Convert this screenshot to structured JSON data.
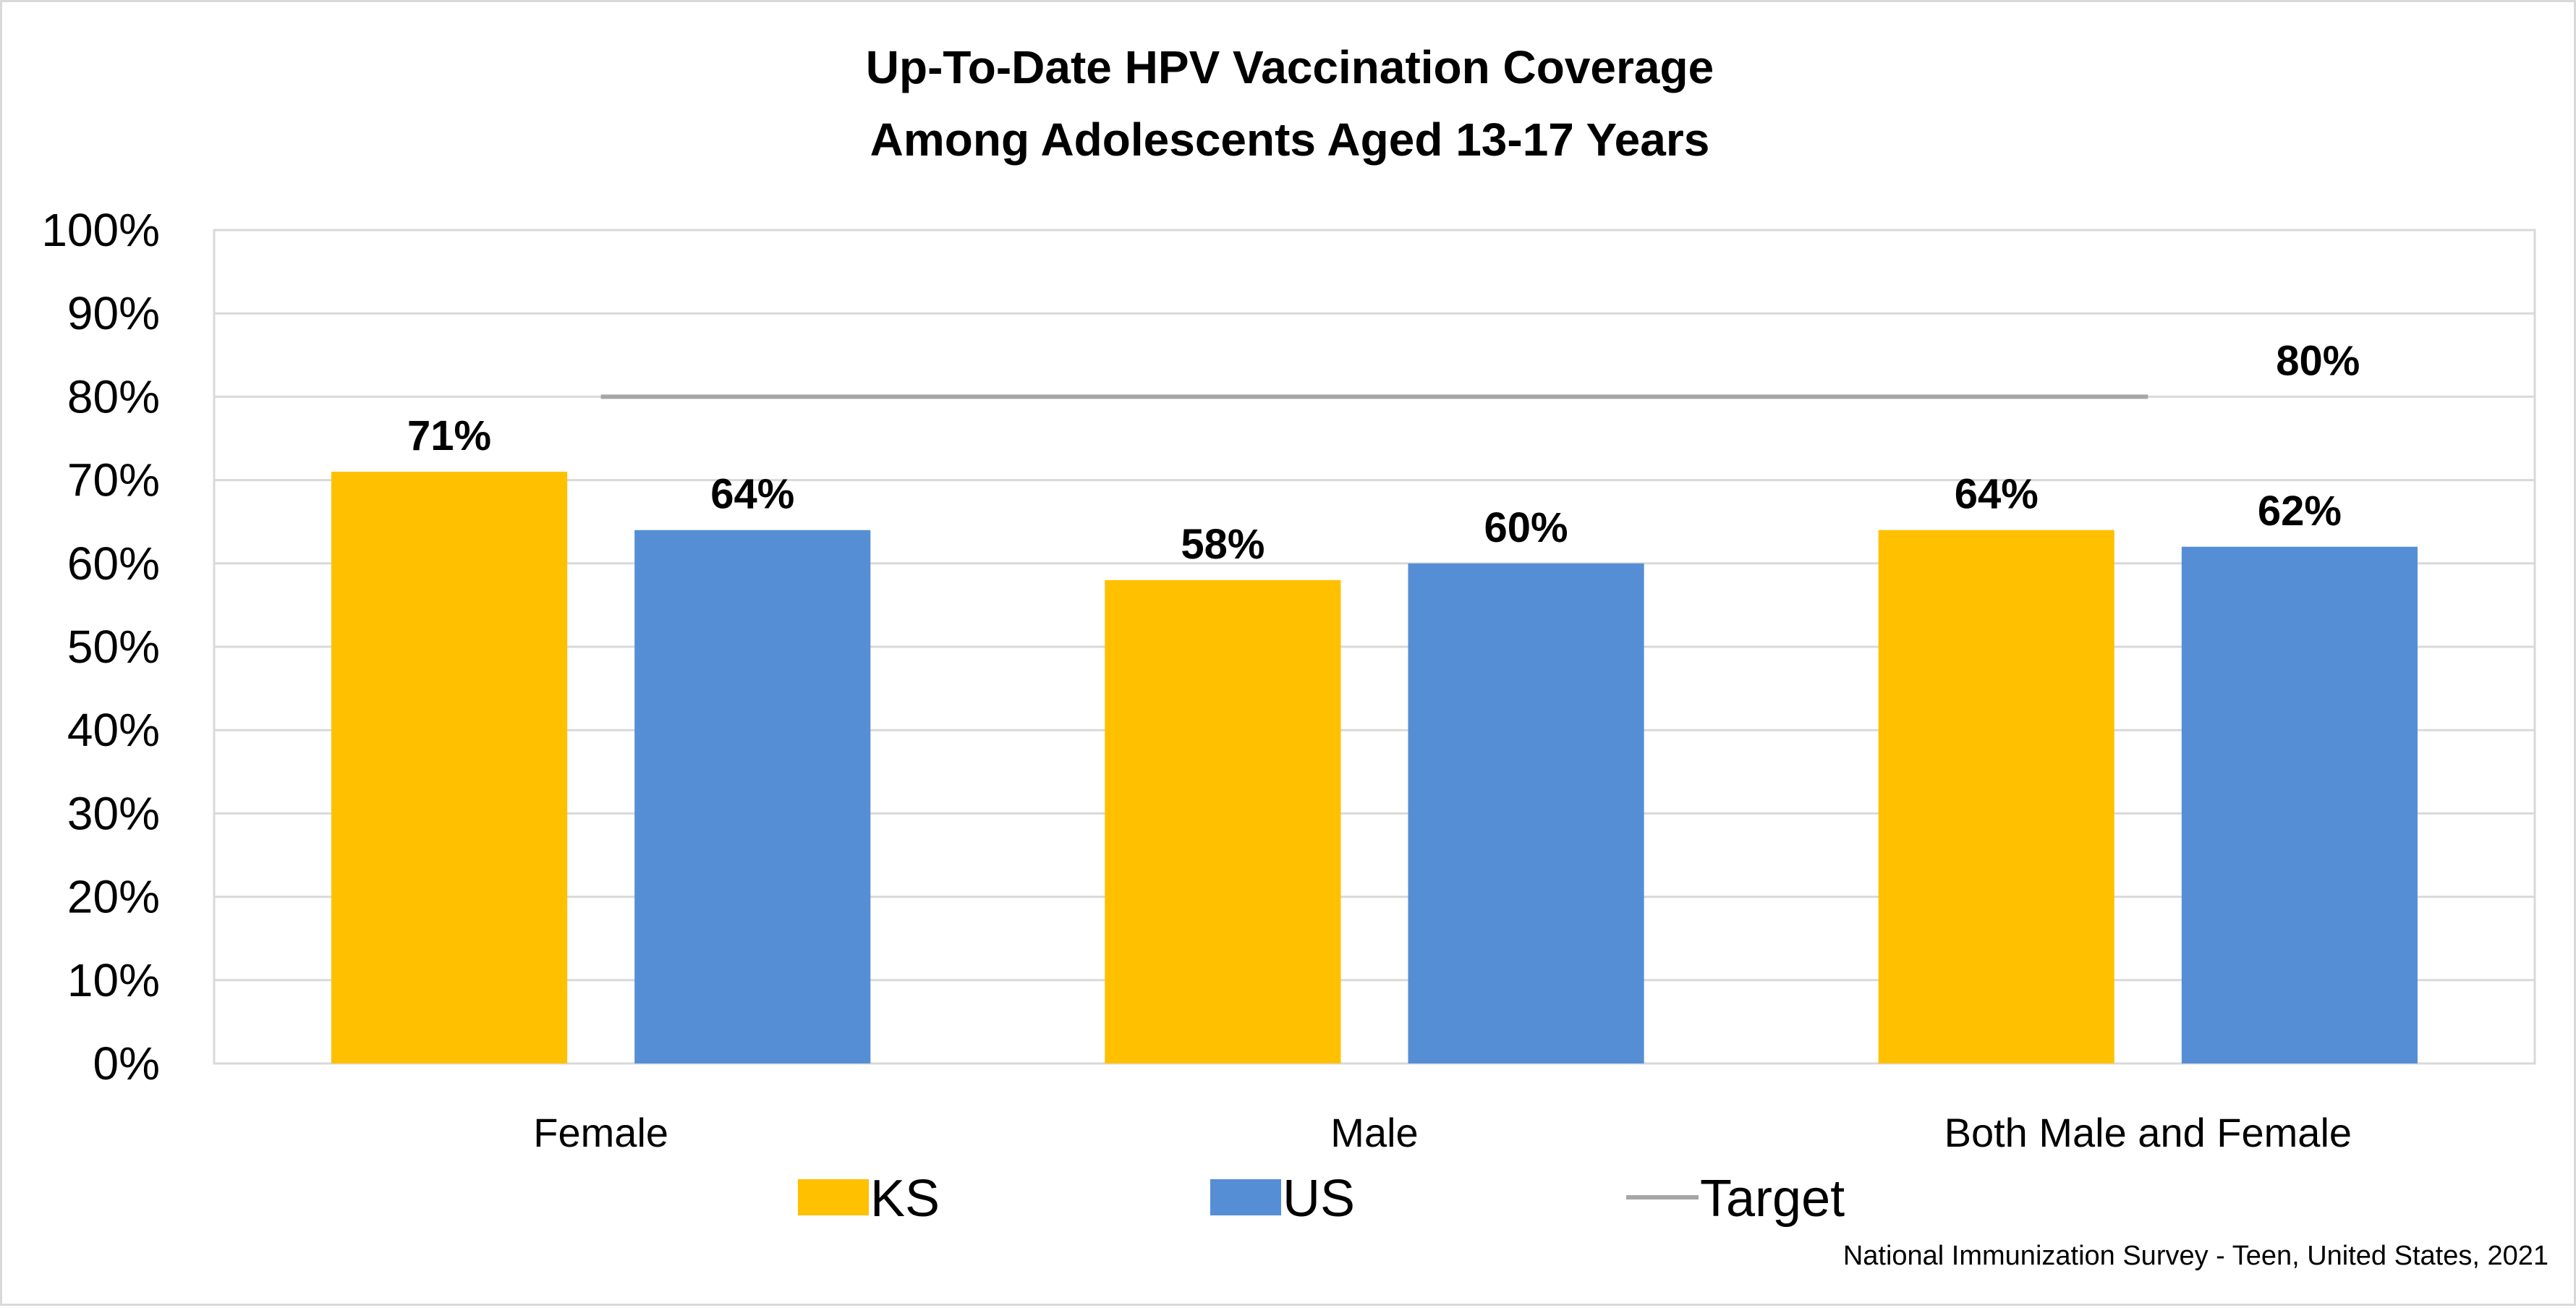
{
  "chart_data": {
    "type": "bar",
    "title_lines": [
      "Up-To-Date HPV Vaccination Coverage",
      "Among Adolescents Aged 13-17 Years"
    ],
    "categories": [
      "Female",
      "Male",
      "Both Male and Female"
    ],
    "series": [
      {
        "name": "KS",
        "values": [
          71,
          58,
          64
        ],
        "labels": [
          "71%",
          "58%",
          "64%"
        ],
        "color": "#FFC000"
      },
      {
        "name": "US",
        "values": [
          64,
          60,
          62
        ],
        "labels": [
          "64%",
          "60%",
          "62%"
        ],
        "color": "#558ED5"
      }
    ],
    "target": {
      "name": "Target",
      "value": 80,
      "label": "80%",
      "color": "#A6A6A6"
    },
    "ylim": [
      0,
      100
    ],
    "yticks": [
      0,
      10,
      20,
      30,
      40,
      50,
      60,
      70,
      80,
      90,
      100
    ],
    "ytick_labels": [
      "0%",
      "10%",
      "20%",
      "30%",
      "40%",
      "50%",
      "60%",
      "70%",
      "80%",
      "90%",
      "100%"
    ],
    "grid": true,
    "legend_position": "bottom",
    "source": "National Immunization Survey - Teen, United States, 2021"
  }
}
